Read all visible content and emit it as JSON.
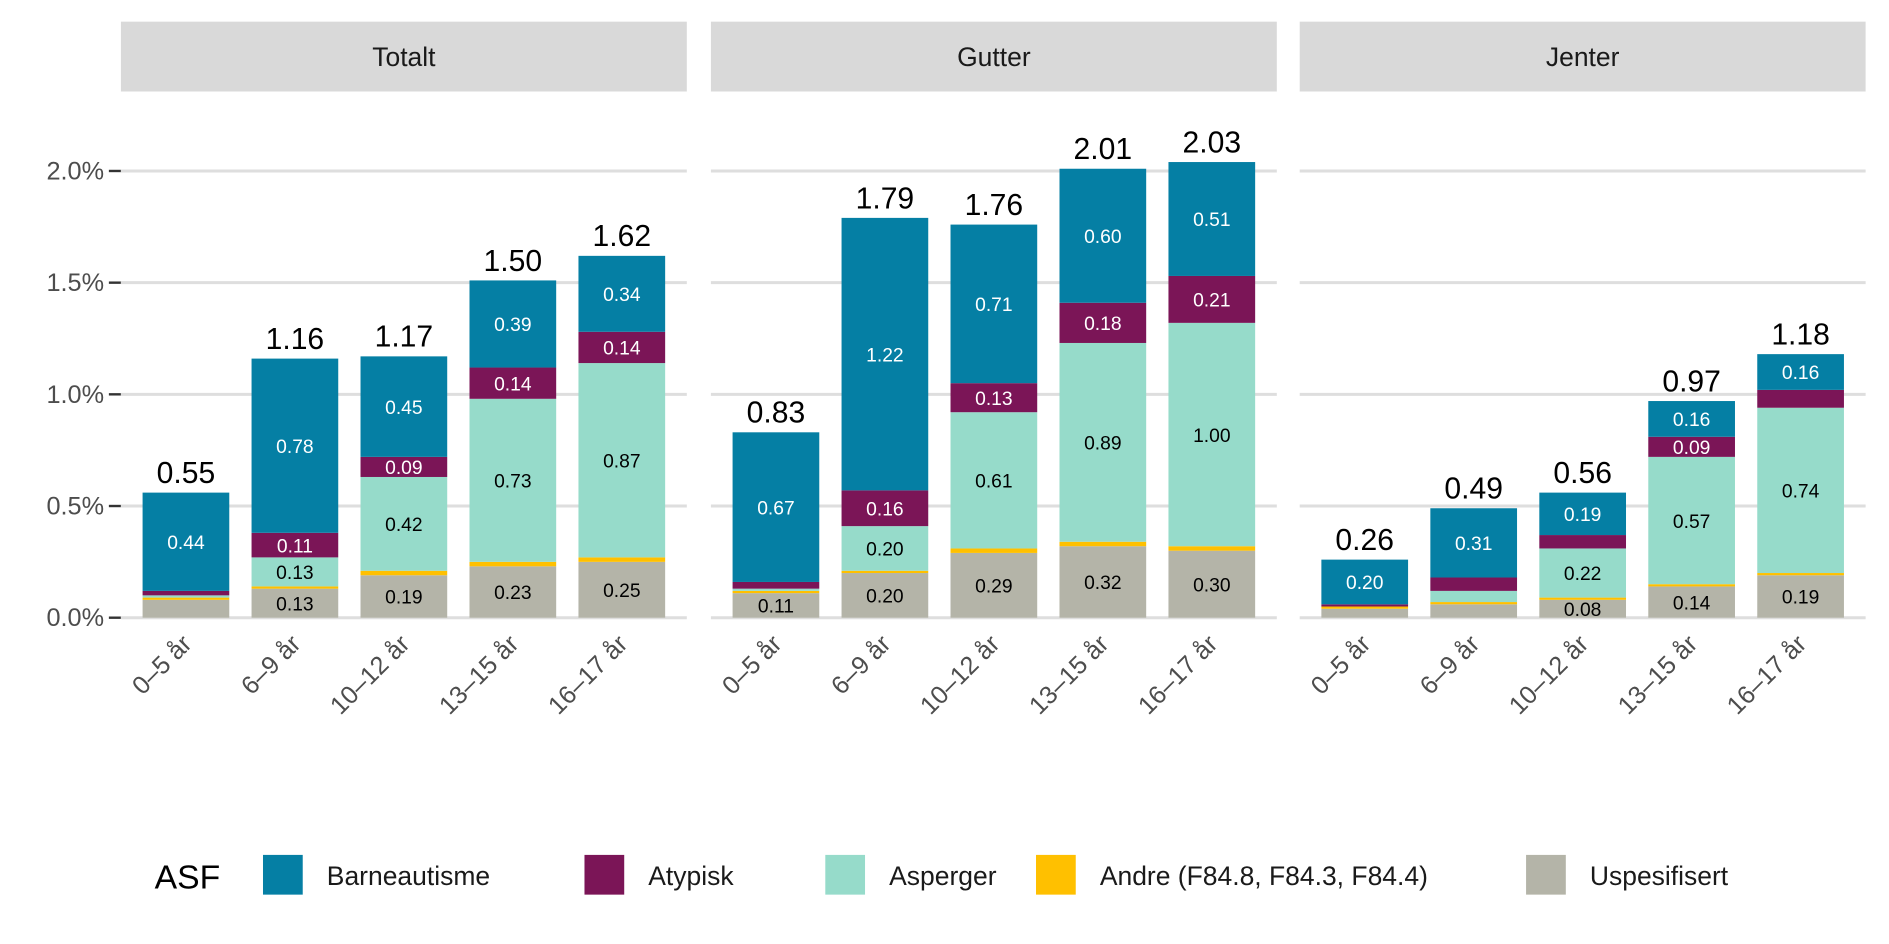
{
  "chart_data": {
    "type": "bar",
    "stacked": true,
    "facets": [
      "Totalt",
      "Gutter",
      "Jenter"
    ],
    "categories": [
      "0–5 år",
      "6–9 år",
      "10–12 år",
      "13–15 år",
      "16–17 år"
    ],
    "y_ticks": [
      "0.0%",
      "0.5%",
      "1.0%",
      "1.5%",
      "2.0%"
    ],
    "y_tick_values": [
      0,
      0.5,
      1.0,
      1.5,
      2.0
    ],
    "ylim": [
      0,
      2.2
    ],
    "grid": true,
    "legend": {
      "title": "ASF",
      "placement": "bottom"
    },
    "series": [
      {
        "name": "Uspesifisert",
        "color": "#B4B4A8",
        "label_color": "#000000"
      },
      {
        "name": "Andre (F84.8, F84.3, F84.4)",
        "color": "#FFC000",
        "label_color": "#000000"
      },
      {
        "name": "Asperger",
        "color": "#96DBCA",
        "label_color": "#000000"
      },
      {
        "name": "Atypisk",
        "color": "#7B1557",
        "label_color": "#FFFFFF"
      },
      {
        "name": "Barneautisme",
        "color": "#057FA4",
        "label_color": "#FFFFFF"
      }
    ],
    "legend_order": [
      4,
      3,
      2,
      1,
      0
    ],
    "panels": [
      {
        "facet": "Totalt",
        "bars": [
          {
            "total": "0.55",
            "values": [
              0.08,
              0.01,
              0.01,
              0.02,
              0.44
            ],
            "labels": [
              "",
              "",
              "",
              "",
              "0.44"
            ]
          },
          {
            "total": "1.16",
            "values": [
              0.13,
              0.01,
              0.13,
              0.11,
              0.78
            ],
            "labels": [
              "0.13",
              "",
              "0.13",
              "0.11",
              "0.78"
            ]
          },
          {
            "total": "1.17",
            "values": [
              0.19,
              0.02,
              0.42,
              0.09,
              0.45
            ],
            "labels": [
              "0.19",
              "",
              "0.42",
              "0.09",
              "0.45"
            ]
          },
          {
            "total": "1.50",
            "values": [
              0.23,
              0.02,
              0.73,
              0.14,
              0.39
            ],
            "labels": [
              "0.23",
              "",
              "0.73",
              "0.14",
              "0.39"
            ]
          },
          {
            "total": "1.62",
            "values": [
              0.25,
              0.02,
              0.87,
              0.14,
              0.34
            ],
            "labels": [
              "0.25",
              "",
              "0.87",
              "0.14",
              "0.34"
            ]
          }
        ]
      },
      {
        "facet": "Gutter",
        "bars": [
          {
            "total": "0.83",
            "values": [
              0.11,
              0.01,
              0.01,
              0.03,
              0.67
            ],
            "labels": [
              "0.11",
              "",
              "",
              "",
              "0.67"
            ]
          },
          {
            "total": "1.79",
            "values": [
              0.2,
              0.01,
              0.2,
              0.16,
              1.22
            ],
            "labels": [
              "0.20",
              "",
              "0.20",
              "0.16",
              "1.22"
            ]
          },
          {
            "total": "1.76",
            "values": [
              0.29,
              0.02,
              0.61,
              0.13,
              0.71
            ],
            "labels": [
              "0.29",
              "",
              "0.61",
              "0.13",
              "0.71"
            ]
          },
          {
            "total": "2.01",
            "values": [
              0.32,
              0.02,
              0.89,
              0.18,
              0.6
            ],
            "labels": [
              "0.32",
              "",
              "0.89",
              "0.18",
              "0.60"
            ]
          },
          {
            "total": "2.03",
            "values": [
              0.3,
              0.02,
              1.0,
              0.21,
              0.51
            ],
            "labels": [
              "0.30",
              "",
              "1.00",
              "0.21",
              "0.51"
            ]
          }
        ]
      },
      {
        "facet": "Jenter",
        "bars": [
          {
            "total": "0.26",
            "values": [
              0.04,
              0.01,
              0.0,
              0.01,
              0.2
            ],
            "labels": [
              "",
              "",
              "",
              "",
              "0.20"
            ]
          },
          {
            "total": "0.49",
            "values": [
              0.06,
              0.01,
              0.05,
              0.06,
              0.31
            ],
            "labels": [
              "",
              "",
              "",
              "",
              "0.31"
            ]
          },
          {
            "total": "0.56",
            "values": [
              0.08,
              0.01,
              0.22,
              0.06,
              0.19
            ],
            "labels": [
              "0.08",
              "",
              "0.22",
              "",
              "0.19"
            ]
          },
          {
            "total": "0.97",
            "values": [
              0.14,
              0.01,
              0.57,
              0.09,
              0.16
            ],
            "labels": [
              "0.14",
              "",
              "0.57",
              "0.09",
              "0.16"
            ]
          },
          {
            "total": "1.18",
            "values": [
              0.19,
              0.01,
              0.74,
              0.08,
              0.16
            ],
            "labels": [
              "0.19",
              "",
              "0.74",
              "",
              "0.16"
            ]
          }
        ]
      }
    ]
  }
}
